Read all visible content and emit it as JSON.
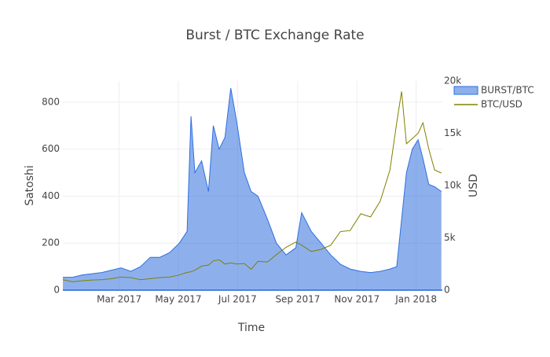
{
  "chart_data": {
    "type": "area-line",
    "title": "Burst / BTC Exchange Rate",
    "x_label": "Time",
    "y_label": "Satoshi",
    "y2_label": "USD",
    "x": [
      "2017-01-02",
      "2017-01-12",
      "2017-01-22",
      "2017-02-01",
      "2017-02-11",
      "2017-02-21",
      "2017-03-03",
      "2017-03-13",
      "2017-03-23",
      "2017-04-02",
      "2017-04-12",
      "2017-04-22",
      "2017-05-02",
      "2017-05-10",
      "2017-05-14",
      "2017-05-18",
      "2017-05-25",
      "2017-06-01",
      "2017-06-06",
      "2017-06-12",
      "2017-06-18",
      "2017-06-24",
      "2017-06-30",
      "2017-07-08",
      "2017-07-15",
      "2017-07-22",
      "2017-08-01",
      "2017-08-10",
      "2017-08-20",
      "2017-08-30",
      "2017-09-05",
      "2017-09-15",
      "2017-09-25",
      "2017-10-05",
      "2017-10-15",
      "2017-10-25",
      "2017-11-05",
      "2017-11-15",
      "2017-11-25",
      "2017-12-05",
      "2017-12-12",
      "2017-12-17",
      "2017-12-22",
      "2017-12-28",
      "2018-01-03",
      "2018-01-08",
      "2018-01-14",
      "2018-01-20",
      "2018-01-27"
    ],
    "series": [
      {
        "name": "BURST/BTC",
        "color": "#2f6fde",
        "fill": true,
        "values": [
          55,
          55,
          65,
          70,
          75,
          85,
          95,
          80,
          100,
          140,
          140,
          160,
          200,
          250,
          740,
          500,
          550,
          420,
          700,
          600,
          650,
          860,
          720,
          500,
          420,
          400,
          300,
          200,
          150,
          180,
          330,
          250,
          200,
          150,
          110,
          90,
          80,
          75,
          80,
          90,
          100,
          300,
          500,
          600,
          640,
          560,
          450,
          440,
          420
        ]
      },
      {
        "name": "BTC/USD",
        "color": "#808000",
        "axis": "y2",
        "fill": false,
        "values": [
          1000,
          800,
          900,
          970,
          1000,
          1100,
          1250,
          1200,
          1000,
          1100,
          1200,
          1250,
          1450,
          1700,
          1750,
          1900,
          2300,
          2400,
          2800,
          2900,
          2500,
          2600,
          2500,
          2550,
          2000,
          2750,
          2700,
          3400,
          4100,
          4600,
          4300,
          3700,
          3900,
          4300,
          5600,
          5700,
          7300,
          7000,
          8500,
          11500,
          16000,
          19000,
          14000,
          14500,
          15000,
          16000,
          13500,
          11500,
          11200
        ]
      }
    ],
    "xlim": [
      "2017-01-02",
      "2018-01-28"
    ],
    "xticks": [
      {
        "value": "2017-03-01",
        "label": "Mar 2017"
      },
      {
        "value": "2017-05-01",
        "label": "May 2017"
      },
      {
        "value": "2017-07-01",
        "label": "Jul 2017"
      },
      {
        "value": "2017-09-01",
        "label": "Sep 2017"
      },
      {
        "value": "2017-11-01",
        "label": "Nov 2017"
      },
      {
        "value": "2018-01-01",
        "label": "Jan 2018"
      }
    ],
    "ylim": [
      0,
      890
    ],
    "yticks": [
      0,
      200,
      400,
      600,
      800
    ],
    "y2lim": [
      0,
      20000
    ],
    "y2ticks": [
      0,
      {
        "value": 5000,
        "label": "5k"
      },
      {
        "value": 10000,
        "label": "10k"
      },
      {
        "value": 15000,
        "label": "15k"
      },
      {
        "value": 20000,
        "label": "20k"
      }
    ],
    "grid": true,
    "legend": "top-right"
  }
}
